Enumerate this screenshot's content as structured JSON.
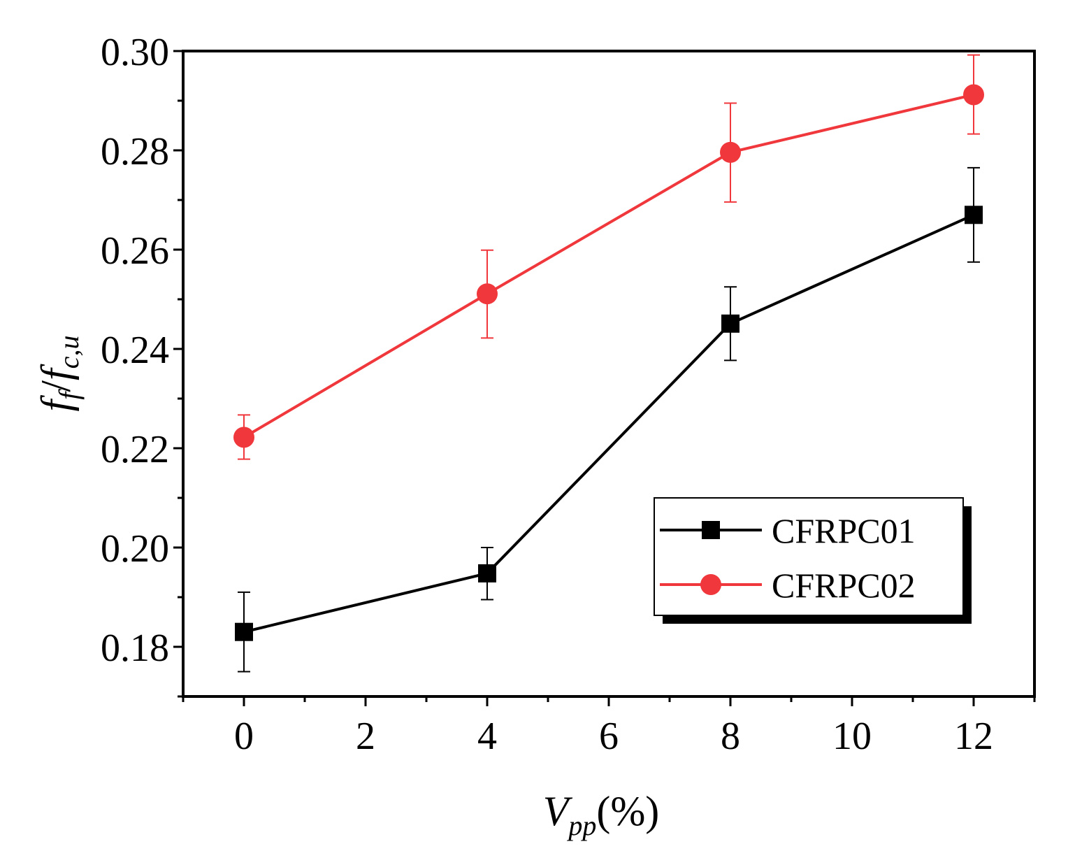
{
  "chart_data": {
    "type": "line",
    "title": "",
    "xlabel": {
      "main": "V",
      "sub": "pp",
      "suffix": "(%)"
    },
    "ylabel": {
      "f1": "f",
      "sub1": "f",
      "sep": "/",
      "f2": "f",
      "sub2": "c,u"
    },
    "xlim": [
      -1,
      13
    ],
    "ylim": [
      0.17,
      0.3
    ],
    "x_ticks": [
      0,
      2,
      4,
      6,
      8,
      10,
      12
    ],
    "x_tick_labels": [
      "0",
      "2",
      "4",
      "6",
      "8",
      "10",
      "12"
    ],
    "y_ticks": [
      0.18,
      0.2,
      0.22,
      0.24,
      0.26,
      0.28,
      0.3
    ],
    "y_tick_labels": [
      "0.18",
      "0.20",
      "0.22",
      "0.24",
      "0.26",
      "0.28",
      "0.30"
    ],
    "legend_position": "bottom-right",
    "series": [
      {
        "name": "CFRPC01",
        "color": "#000000",
        "marker": "square",
        "x": [
          0,
          4,
          8,
          12
        ],
        "y": [
          0.183,
          0.1948,
          0.2451,
          0.267
        ],
        "err_low": [
          0.175,
          0.1895,
          0.2377,
          0.2575
        ],
        "err_high": [
          0.191,
          0.2,
          0.2525,
          0.2765
        ]
      },
      {
        "name": "CFRPC02",
        "color": "#f0373c",
        "marker": "circle",
        "x": [
          0,
          4,
          8,
          12
        ],
        "y": [
          0.2222,
          0.2511,
          0.2796,
          0.2912
        ],
        "err_low": [
          0.2178,
          0.2422,
          0.2696,
          0.2833
        ],
        "err_high": [
          0.2267,
          0.2599,
          0.2895,
          0.2992
        ]
      }
    ]
  }
}
